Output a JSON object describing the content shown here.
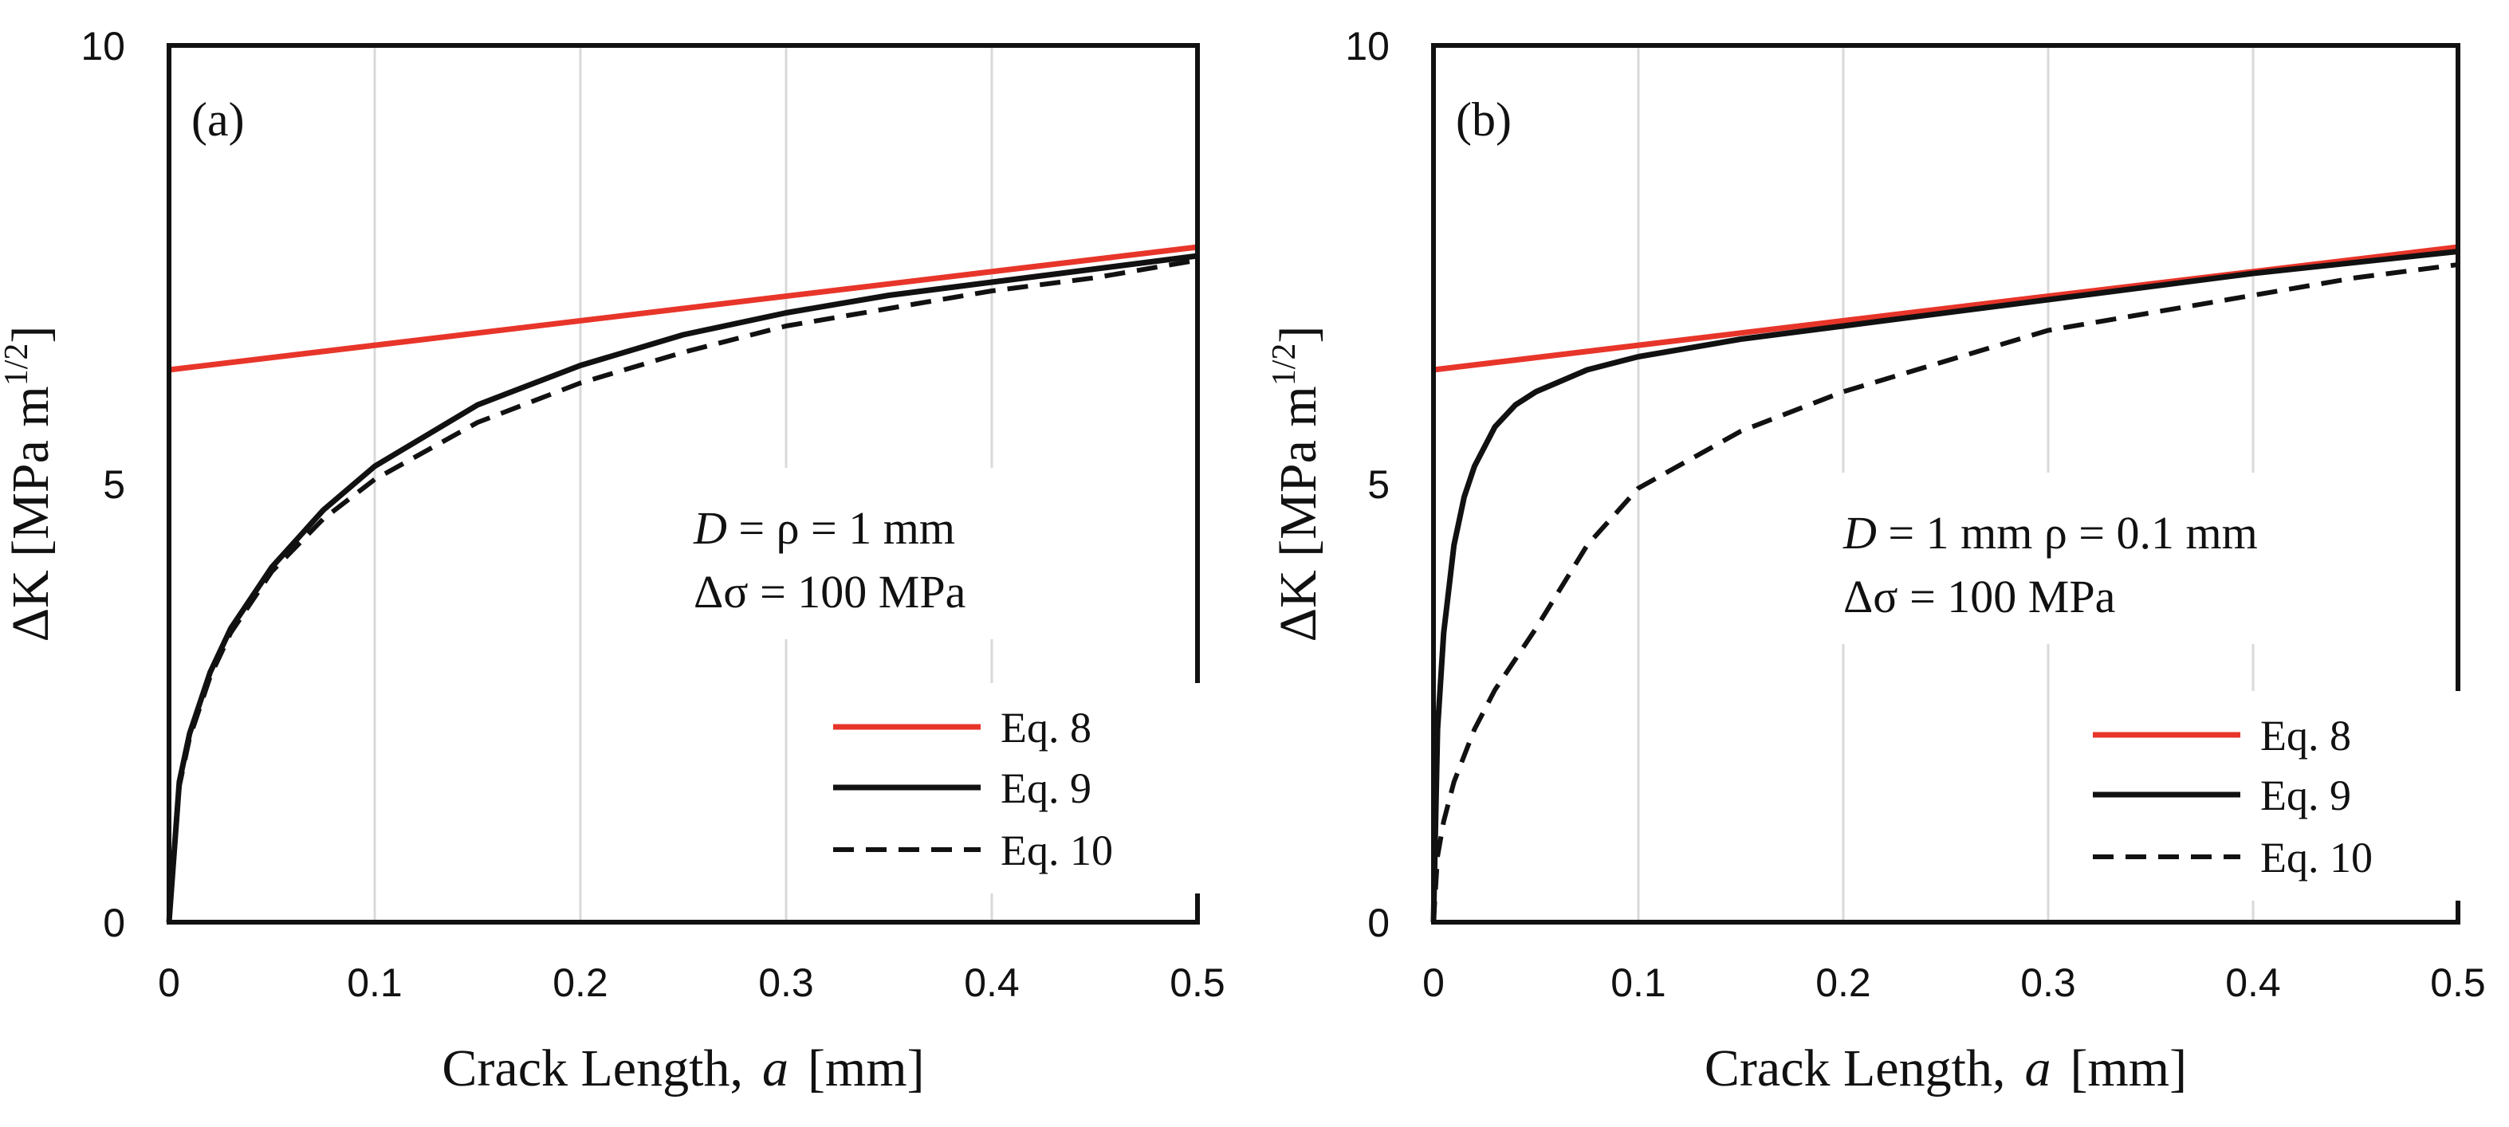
{
  "chart_data": [
    {
      "type": "line",
      "panel_label": "(a)",
      "xlabel": "Crack Length,  a  [mm]",
      "xlabel_parts": {
        "pre": "Crack Length,",
        "var": "a",
        "unit": "[mm]"
      },
      "ylabel": "ΔK  [MPa m1/2]",
      "ylabel_parts": {
        "pre": "ΔK  [MPa m",
        "sup": "1/2",
        "post": "]"
      },
      "xlim": [
        0,
        0.5
      ],
      "ylim": [
        0,
        10
      ],
      "xticks": [
        "0",
        "0.1",
        "0.2",
        "0.3",
        "0.4",
        "0.5"
      ],
      "yticks": [
        "0",
        "5",
        "10"
      ],
      "grid": "vertical",
      "legend_position": "bottom-right",
      "annotation": {
        "var": "D",
        "line1": " = ρ = 1 mm",
        "line2": "Δσ = 100 MPa"
      },
      "series": [
        {
          "name": "Eq. 8",
          "color": "#e8352a",
          "style": "solid",
          "x": [
            0,
            0.5
          ],
          "y": [
            6.3,
            7.7
          ]
        },
        {
          "name": "Eq. 9",
          "color": "#111111",
          "style": "solid",
          "x": [
            0,
            0.005,
            0.01,
            0.02,
            0.03,
            0.05,
            0.075,
            0.1,
            0.15,
            0.2,
            0.25,
            0.3,
            0.35,
            0.4,
            0.45,
            0.5
          ],
          "y": [
            0,
            1.6,
            2.15,
            2.85,
            3.35,
            4.05,
            4.7,
            5.2,
            5.9,
            6.35,
            6.7,
            6.95,
            7.15,
            7.3,
            7.45,
            7.6
          ]
        },
        {
          "name": "Eq. 10",
          "color": "#111111",
          "style": "dashed",
          "x": [
            0,
            0.005,
            0.01,
            0.02,
            0.03,
            0.05,
            0.075,
            0.1,
            0.15,
            0.2,
            0.25,
            0.3,
            0.35,
            0.4,
            0.45,
            0.5
          ],
          "y": [
            0,
            1.55,
            2.1,
            2.8,
            3.3,
            4.0,
            4.6,
            5.05,
            5.7,
            6.15,
            6.5,
            6.8,
            7.0,
            7.2,
            7.35,
            7.55
          ]
        }
      ]
    },
    {
      "type": "line",
      "panel_label": "(b)",
      "xlabel": "Crack Length,  a  [mm]",
      "xlabel_parts": {
        "pre": "Crack Length,",
        "var": "a",
        "unit": "[mm]"
      },
      "ylabel": "ΔK  [MPa m1/2]",
      "ylabel_parts": {
        "pre": "ΔK  [MPa m",
        "sup": "1/2",
        "post": "]"
      },
      "xlim": [
        0,
        0.5
      ],
      "ylim": [
        0,
        10
      ],
      "xticks": [
        "0",
        "0.1",
        "0.2",
        "0.3",
        "0.4",
        "0.5"
      ],
      "yticks": [
        "0",
        "5",
        "10"
      ],
      "grid": "vertical",
      "legend_position": "bottom-right",
      "annotation": {
        "var": "D",
        "line1": " = 1 mm  ρ = 0.1 mm",
        "line2": "Δσ = 100 MPa"
      },
      "series": [
        {
          "name": "Eq. 8",
          "color": "#e8352a",
          "style": "solid",
          "x": [
            0,
            0.5
          ],
          "y": [
            6.3,
            7.7
          ]
        },
        {
          "name": "Eq. 9",
          "color": "#111111",
          "style": "solid",
          "x": [
            0,
            0.002,
            0.005,
            0.01,
            0.015,
            0.02,
            0.03,
            0.04,
            0.05,
            0.075,
            0.1,
            0.15,
            0.2,
            0.3,
            0.4,
            0.5
          ],
          "y": [
            0,
            2.2,
            3.3,
            4.3,
            4.85,
            5.2,
            5.65,
            5.9,
            6.05,
            6.3,
            6.45,
            6.65,
            6.8,
            7.1,
            7.4,
            7.65
          ]
        },
        {
          "name": "Eq. 10",
          "color": "#111111",
          "style": "dashed",
          "x": [
            0,
            0.002,
            0.005,
            0.01,
            0.02,
            0.03,
            0.05,
            0.075,
            0.1,
            0.15,
            0.2,
            0.25,
            0.3,
            0.35,
            0.4,
            0.45,
            0.5
          ],
          "y": [
            0,
            0.75,
            1.15,
            1.6,
            2.2,
            2.65,
            3.35,
            4.3,
            4.95,
            5.6,
            6.05,
            6.4,
            6.75,
            6.95,
            7.15,
            7.35,
            7.5
          ]
        }
      ]
    }
  ]
}
